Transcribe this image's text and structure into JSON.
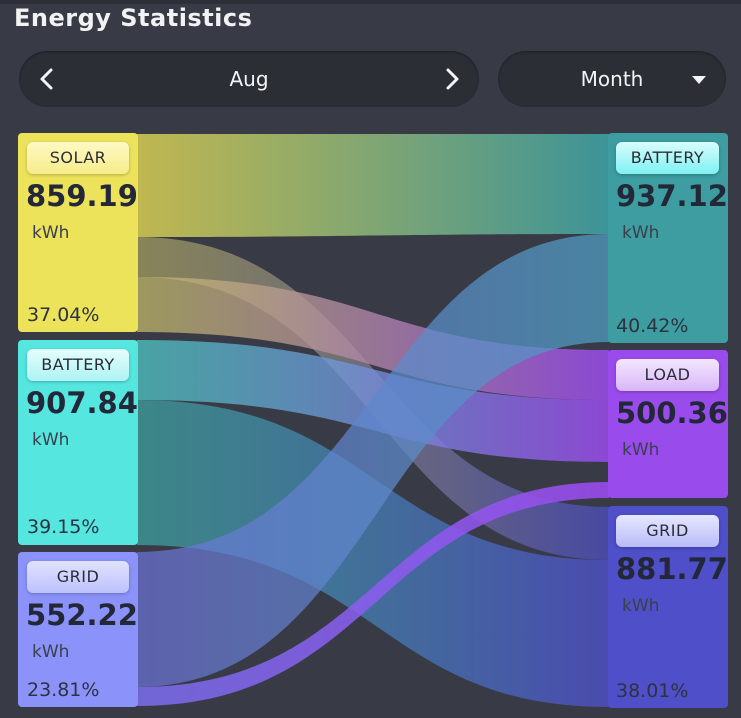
{
  "header": {
    "title": "Energy Statistics"
  },
  "nav": {
    "month_label": "Aug",
    "prev_icon": "chevron-left-icon",
    "next_icon": "chevron-right-icon"
  },
  "period": {
    "selected": "Month",
    "dropdown_icon": "caret-down-icon"
  },
  "sources": {
    "solar": {
      "label": "SOLAR",
      "value": "859.19",
      "unit": "kWh",
      "percent": "37.04%",
      "color": "#ece35b"
    },
    "battery": {
      "label": "BATTERY",
      "value": "907.84",
      "unit": "kWh",
      "percent": "39.15%",
      "color": "#55e6e0"
    },
    "grid": {
      "label": "GRID",
      "value": "552.22",
      "unit": "kWh",
      "percent": "23.81%",
      "color": "#8b93fb"
    }
  },
  "targets": {
    "battery": {
      "label": "BATTERY",
      "value": "937.12",
      "unit": "kWh",
      "percent": "40.42%",
      "color": "#3d9da1"
    },
    "load": {
      "label": "LOAD",
      "value": "500.36",
      "unit": "kWh",
      "color": "#9a4bec"
    },
    "grid": {
      "label": "GRID",
      "value": "881.77",
      "unit": "kWh",
      "percent": "38.01%",
      "color": "#4e4fc9"
    }
  }
}
